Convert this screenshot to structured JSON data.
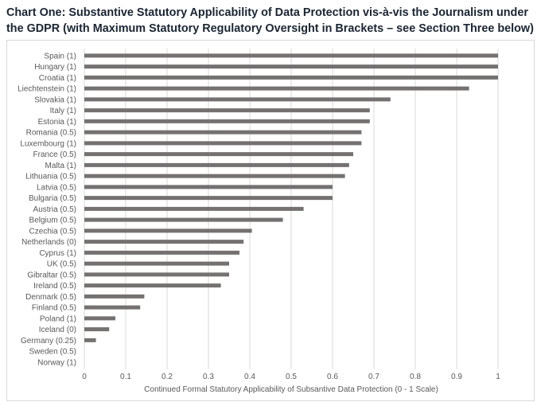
{
  "title": "Chart One: Substantive Statutory Applicability of Data Protection vis-à-vis the Journalism under the GDPR (with Maximum Statutory Regulatory Oversight in Brackets – see Section Three below)",
  "chart_data": {
    "type": "bar",
    "orientation": "horizontal",
    "xlabel": "Continued Formal Statutory Applicability of Subsantive Data Protection (0 - 1 Scale)",
    "ylabel": "",
    "xlim": [
      0,
      1
    ],
    "xticks": [
      "0",
      "0.1",
      "0.2",
      "0.3",
      "0.4",
      "0.5",
      "0.6",
      "0.7",
      "0.8",
      "0.9",
      "1"
    ],
    "grid": true,
    "bar_color": "#767171",
    "categories": [
      "Spain (1)",
      "Hungary (1)",
      "Croatia (1)",
      "Liechtenstein (1)",
      "Slovakia (1)",
      "Italy (1)",
      "Estonia (1)",
      "Romania (0.5)",
      "Luxembourg (1)",
      "France (0.5)",
      "Malta (1)",
      "Lithuania (0.5)",
      "Latvia (0.5)",
      "Bulgaria (0.5)",
      "Austria (0.5)",
      "Belgium (0.5)",
      "Czechia (0.5)",
      "Netherlands (0)",
      "Cyprus (1)",
      "UK (0.5)",
      "Gibraltar (0.5)",
      "Ireland (0.5)",
      "Denmark (0.5)",
      "Finland (0.5)",
      "Poland (1)",
      "Iceland (0)",
      "Germany (0.25)",
      "Sweden (0.5)",
      "Norway (1)"
    ],
    "values": [
      1.0,
      1.0,
      1.0,
      0.93,
      0.74,
      0.69,
      0.69,
      0.67,
      0.67,
      0.65,
      0.64,
      0.63,
      0.6,
      0.6,
      0.53,
      0.48,
      0.405,
      0.385,
      0.375,
      0.35,
      0.35,
      0.33,
      0.145,
      0.135,
      0.075,
      0.06,
      0.028,
      0.0,
      0.0
    ]
  }
}
